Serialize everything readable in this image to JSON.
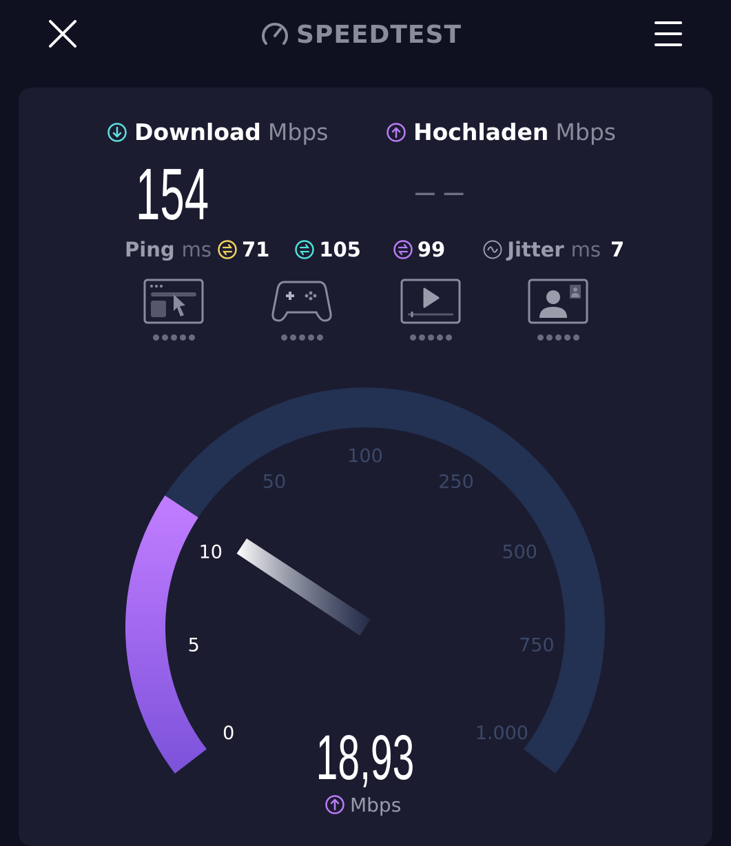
{
  "header": {
    "logo_text": "SPEEDTEST",
    "close_icon": "close-icon",
    "menu_icon": "hamburger-menu-icon"
  },
  "download": {
    "label": "Download",
    "unit": "Mbps",
    "value": "154",
    "icon": "arrow-down-circle-icon",
    "color": "#5ee0e0"
  },
  "upload": {
    "label": "Hochladen",
    "unit": "Mbps",
    "value": "– –",
    "icon": "arrow-up-circle-icon",
    "color": "#b97cf5"
  },
  "ping": {
    "label": "Ping",
    "unit": "ms",
    "idle": "71",
    "download": "105",
    "upload": "99",
    "colors": {
      "idle": "#f3d35a",
      "download": "#4fe0d8",
      "upload": "#b97cf5"
    }
  },
  "jitter": {
    "label": "Jitter",
    "unit": "ms",
    "value": "7"
  },
  "apps": [
    {
      "name": "web-browsing",
      "icon": "browser-cursor-icon",
      "rating": 0
    },
    {
      "name": "gaming",
      "icon": "gamepad-icon",
      "rating": 0
    },
    {
      "name": "video-streaming",
      "icon": "video-play-icon",
      "rating": 0
    },
    {
      "name": "video-chat",
      "icon": "video-call-icon",
      "rating": 0
    }
  ],
  "gauge": {
    "ticks": [
      "0",
      "5",
      "10",
      "50",
      "100",
      "250",
      "500",
      "750",
      "1.000"
    ],
    "tick_values": [
      0,
      5,
      10,
      50,
      100,
      250,
      500,
      750,
      1000
    ],
    "current_value": 18.93,
    "current_value_text": "18,93",
    "unit": "Mbps",
    "mode": "upload",
    "colors": {
      "track": "#233152",
      "fill_start": "#c07cff",
      "fill_end": "#7f54dc"
    }
  }
}
